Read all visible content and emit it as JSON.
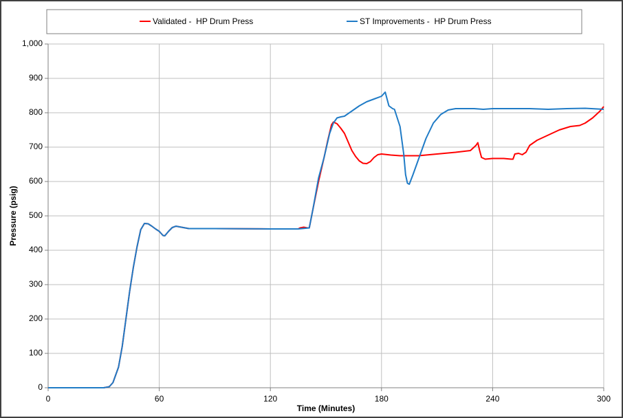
{
  "chart_data": {
    "type": "line",
    "x_label": "Time (Minutes)",
    "y_label": "Pressure (psig)",
    "xlim": [
      0,
      300
    ],
    "xticks": [
      0,
      60,
      120,
      180,
      240,
      300
    ],
    "ylim": [
      0,
      1000
    ],
    "yticks": [
      0,
      100,
      200,
      300,
      400,
      500,
      600,
      700,
      800,
      900,
      {
        "value": 1000,
        "label": "1,000"
      }
    ],
    "grid": true,
    "legend": "top",
    "series": [
      {
        "name": "Validated -  HP Drum Press",
        "color": "#ff0000",
        "x": [
          0,
          30,
          33,
          35,
          38,
          40,
          42,
          44,
          46,
          48,
          50,
          52,
          54,
          56,
          58,
          60,
          62,
          63,
          65,
          67,
          69,
          72,
          76,
          90,
          120,
          135,
          136,
          138,
          140,
          141,
          143,
          146,
          149,
          151,
          153,
          154,
          156,
          158,
          160,
          162,
          164,
          166,
          168,
          170,
          172,
          174,
          176,
          178,
          180,
          185,
          190,
          200,
          210,
          220,
          228,
          231,
          232,
          233,
          234,
          236,
          240,
          246,
          250,
          251,
          252,
          254,
          256,
          258,
          260,
          264,
          270,
          276,
          282,
          287,
          290,
          294,
          298,
          300
        ],
        "values": [
          0,
          0,
          3,
          15,
          60,
          120,
          200,
          280,
          350,
          410,
          460,
          478,
          477,
          470,
          462,
          455,
          443,
          442,
          455,
          466,
          470,
          467,
          463,
          463,
          462,
          462,
          465,
          467,
          465,
          465,
          520,
          600,
          670,
          720,
          765,
          773,
          768,
          755,
          740,
          715,
          690,
          673,
          660,
          653,
          652,
          658,
          670,
          678,
          680,
          677,
          675,
          675,
          680,
          685,
          690,
          705,
          713,
          690,
          670,
          665,
          667,
          667,
          665,
          665,
          680,
          682,
          678,
          685,
          705,
          720,
          735,
          750,
          760,
          763,
          770,
          785,
          805,
          818
        ]
      },
      {
        "name": "ST Improvements -  HP Drum Press",
        "color": "#1f7bc6",
        "x": [
          0,
          30,
          33,
          35,
          38,
          40,
          42,
          44,
          46,
          48,
          50,
          52,
          54,
          56,
          58,
          60,
          62,
          63,
          65,
          67,
          69,
          72,
          76,
          90,
          120,
          135,
          141,
          143,
          146,
          149,
          152,
          154,
          156,
          158,
          160,
          164,
          168,
          172,
          176,
          180,
          182,
          184,
          186,
          187,
          190,
          192,
          193,
          194,
          195,
          197,
          200,
          204,
          208,
          212,
          216,
          220,
          230,
          235,
          240,
          250,
          260,
          270,
          280,
          290,
          300
        ],
        "values": [
          0,
          0,
          3,
          15,
          60,
          120,
          200,
          280,
          350,
          410,
          460,
          478,
          477,
          470,
          462,
          455,
          443,
          442,
          455,
          466,
          470,
          467,
          463,
          463,
          462,
          462,
          465,
          520,
          610,
          670,
          740,
          770,
          785,
          788,
          790,
          805,
          820,
          832,
          840,
          848,
          860,
          820,
          812,
          810,
          760,
          680,
          620,
          595,
          592,
          620,
          665,
          725,
          770,
          795,
          808,
          812,
          812,
          810,
          812,
          812,
          812,
          810,
          812,
          813,
          810
        ]
      }
    ]
  }
}
